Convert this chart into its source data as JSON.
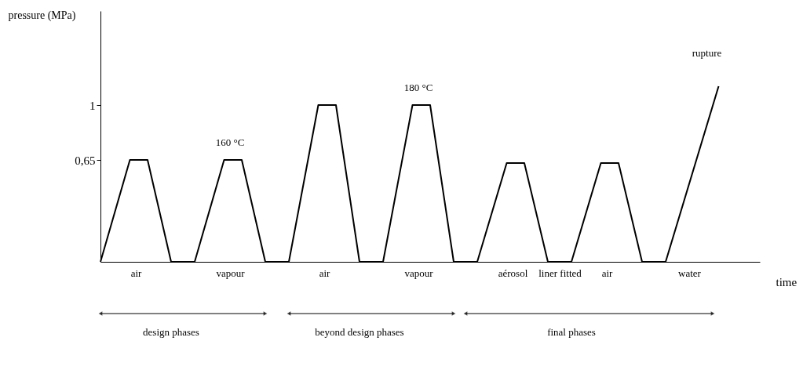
{
  "chart_data": {
    "type": "line",
    "xlabel": "time",
    "ylabel": "pressure (MPa)",
    "categories": [
      null,
      null,
      null,
      null,
      null,
      null,
      "air",
      null,
      null,
      null,
      null,
      null,
      null,
      null,
      null,
      null,
      null,
      null,
      null,
      null,
      null,
      null,
      "vapour",
      null,
      null,
      null,
      null,
      null,
      null,
      null,
      null,
      null,
      null,
      null,
      null,
      null,
      null,
      null,
      "air",
      null,
      null,
      null,
      null,
      null,
      null,
      null,
      null,
      null,
      null,
      null,
      null,
      null,
      null,
      null,
      "vapour",
      null,
      null,
      null,
      null,
      null,
      null,
      null,
      null,
      null,
      null,
      null,
      null,
      null,
      null,
      null,
      "aérosol",
      null,
      null,
      null,
      null,
      null,
      null,
      null,
      "liner fitted",
      null,
      null,
      null,
      null,
      null,
      null,
      null,
      "air",
      null,
      null,
      null,
      null,
      null,
      null,
      null,
      null,
      null,
      null,
      null,
      null,
      null,
      "water",
      null,
      null,
      null,
      null,
      null,
      null,
      null,
      null,
      null,
      null,
      null,
      null
    ],
    "values": [
      0,
      null,
      null,
      null,
      null,
      0.65,
      null,
      null,
      0.65,
      null,
      null,
      null,
      0,
      null,
      null,
      null,
      0,
      null,
      null,
      null,
      null,
      0.65,
      null,
      null,
      0.65,
      null,
      null,
      null,
      0,
      null,
      null,
      null,
      0,
      null,
      null,
      null,
      null,
      1,
      null,
      null,
      1,
      null,
      null,
      null,
      0,
      null,
      null,
      null,
      0,
      null,
      null,
      null,
      null,
      1,
      null,
      null,
      1,
      null,
      null,
      null,
      0,
      null,
      null,
      null,
      0,
      null,
      null,
      null,
      null,
      0.63,
      null,
      null,
      0.63,
      null,
      null,
      null,
      0,
      null,
      null,
      null,
      0,
      null,
      null,
      null,
      null,
      0.63,
      null,
      null,
      0.63,
      null,
      null,
      null,
      0,
      null,
      null,
      null,
      0,
      null,
      null,
      null,
      null,
      null,
      null,
      null,
      null,
      1.12,
      null,
      null,
      null,
      null,
      null,
      null,
      null
    ],
    "color": "#000000",
    "ylim": [
      0,
      1.6
    ],
    "yticks": [
      {
        "value": 0.65,
        "label": "0,65"
      },
      1
    ],
    "grid": false,
    "annotations": [
      "160 °C",
      "180 °C",
      "rupture",
      "design phases",
      "beyond design phases",
      "final phases"
    ]
  }
}
